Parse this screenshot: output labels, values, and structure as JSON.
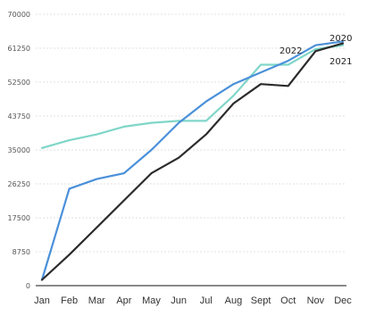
{
  "chart_data": {
    "type": "line",
    "title": "",
    "xlabel": "",
    "ylabel": "",
    "grid": true,
    "legend": "none (series labels placed at line ends)",
    "ylim": [
      0,
      70000
    ],
    "yticks": [
      0,
      8750,
      17500,
      26250,
      35000,
      43750,
      52500,
      61250,
      70000
    ],
    "ytick_labels": [
      "0",
      "8750",
      "17500",
      "26250",
      "35000",
      "43750",
      "52500",
      "61250",
      "70000"
    ],
    "categories": [
      "Jan",
      "Feb",
      "Mar",
      "Apr",
      "May",
      "Jun",
      "Jul",
      "Aug",
      "Sept",
      "Oct",
      "Nov",
      "Dec"
    ],
    "series": [
      {
        "name": "2022",
        "color": "#7fd6c8",
        "values": [
          35500,
          37500,
          39000,
          41000,
          42000,
          42500,
          42500,
          49000,
          57000,
          57000,
          61000,
          62000
        ]
      },
      {
        "name": "2020",
        "color": "#4a90d9",
        "values": [
          1500,
          25000,
          27500,
          29000,
          35000,
          42000,
          47500,
          52000,
          55000,
          58000,
          62000,
          63000
        ]
      },
      {
        "name": "2021",
        "color": "#2b2b2b",
        "values": [
          1500,
          8000,
          15000,
          22000,
          29000,
          33000,
          39000,
          47000,
          52000,
          51500,
          60500,
          62500
        ]
      }
    ]
  }
}
